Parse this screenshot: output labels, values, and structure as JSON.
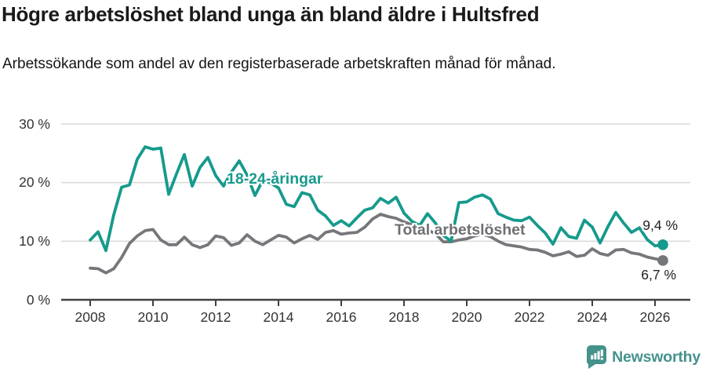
{
  "header": {
    "title": "Högre arbetslöshet bland unga än bland äldre i Hultsfred",
    "subtitle": "Arbetssökande som andel av den registerbaserade arbetskraften månad för månad."
  },
  "chart_data": {
    "type": "line",
    "title": "Högre arbetslöshet bland unga än bland äldre i Hultsfred",
    "subtitle": "Arbetssökande som andel av den registerbaserade arbetskraften månad för månad.",
    "grid": "horizontal",
    "legend_position": "inline-labels",
    "ylim": [
      0,
      30
    ],
    "y_ticks": [
      0,
      10,
      20,
      30
    ],
    "y_tick_suffix": " %",
    "x_ticks": [
      2008,
      2010,
      2012,
      2014,
      2016,
      2018,
      2020,
      2022,
      2024,
      2026
    ],
    "x": [
      2008,
      2008.25,
      2008.5,
      2008.75,
      2009,
      2009.25,
      2009.5,
      2009.75,
      2010,
      2010.25,
      2010.5,
      2010.75,
      2011,
      2011.25,
      2011.5,
      2011.75,
      2012,
      2012.25,
      2012.5,
      2012.75,
      2013,
      2013.25,
      2013.5,
      2013.75,
      2014,
      2014.25,
      2014.5,
      2014.75,
      2015,
      2015.25,
      2015.5,
      2015.75,
      2016,
      2016.25,
      2016.5,
      2016.75,
      2017,
      2017.25,
      2017.5,
      2017.75,
      2018,
      2018.25,
      2018.5,
      2018.75,
      2019,
      2019.25,
      2019.5,
      2019.75,
      2020,
      2020.25,
      2020.5,
      2020.75,
      2021,
      2021.25,
      2021.5,
      2021.75,
      2022,
      2022.25,
      2022.5,
      2022.75,
      2023,
      2023.25,
      2023.5,
      2023.75,
      2024,
      2024.25,
      2024.5,
      2024.75,
      2025,
      2025.25,
      2025.5,
      2025.75,
      2026,
      2026.25
    ],
    "series": [
      {
        "id": "youth",
        "name": "18-24-åringar",
        "color": "#169a8d",
        "end_label": "9,4 %",
        "values": [
          10.2,
          11.6,
          8.4,
          14.5,
          19.2,
          19.6,
          24.0,
          26.1,
          25.7,
          25.9,
          18.0,
          21.5,
          24.8,
          19.4,
          22.6,
          24.3,
          21.2,
          19.4,
          21.8,
          23.7,
          21.3,
          17.8,
          20.4,
          19.9,
          19.1,
          16.3,
          15.9,
          18.3,
          17.9,
          15.3,
          14.3,
          12.7,
          13.5,
          12.6,
          14.0,
          15.3,
          15.7,
          17.3,
          16.5,
          17.5,
          14.8,
          13.4,
          12.7,
          14.7,
          13.1,
          11.0,
          10.0,
          16.6,
          16.7,
          17.5,
          17.9,
          17.2,
          14.7,
          14.1,
          13.6,
          13.5,
          14.1,
          12.7,
          11.4,
          9.5,
          12.3,
          10.8,
          10.5,
          13.6,
          12.4,
          9.7,
          12.5,
          14.9,
          13.1,
          11.5,
          12.3,
          10.3,
          9.2,
          9.4
        ]
      },
      {
        "id": "total",
        "name": "Total arbetslöshet",
        "color": "#76777b",
        "end_label": "6,7 %",
        "values": [
          5.4,
          5.3,
          4.6,
          5.3,
          7.2,
          9.6,
          10.9,
          11.8,
          12.0,
          10.2,
          9.4,
          9.4,
          10.7,
          9.4,
          8.9,
          9.4,
          10.9,
          10.6,
          9.3,
          9.7,
          11.1,
          10.0,
          9.4,
          10.2,
          11.0,
          10.7,
          9.7,
          10.4,
          11.0,
          10.3,
          11.5,
          11.8,
          11.2,
          11.4,
          11.5,
          12.4,
          13.8,
          14.6,
          14.2,
          13.9,
          13.3,
          12.8,
          12.3,
          11.9,
          11.3,
          9.9,
          9.9,
          10.2,
          10.4,
          10.9,
          11.2,
          10.8,
          10.0,
          9.4,
          9.2,
          9.0,
          8.6,
          8.5,
          8.1,
          7.5,
          7.8,
          8.2,
          7.4,
          7.6,
          8.7,
          7.9,
          7.6,
          8.5,
          8.6,
          8.0,
          7.8,
          7.3,
          7.0,
          6.7
        ]
      }
    ]
  },
  "colors": {
    "youth_line": "#169a8d",
    "total_line": "#76777b",
    "grid_line": "#d9d9d9",
    "axis_line": "#404040",
    "brand_teal": "#45928c"
  },
  "footer": {
    "brand": "Newsworthy"
  }
}
